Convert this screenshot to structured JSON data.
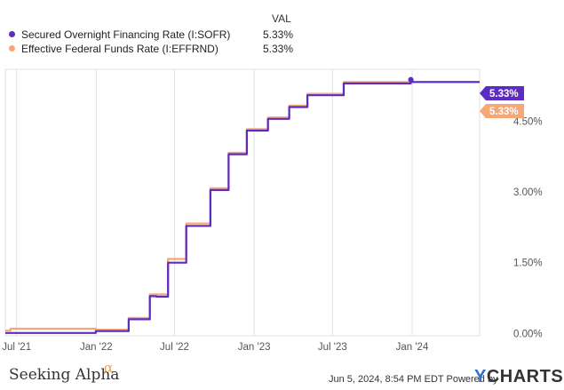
{
  "legend": {
    "header": "VAL",
    "items": [
      {
        "label": "Secured Overnight Financing Rate (I:SOFR)",
        "value": "5.33%",
        "color": "#5b2bc4"
      },
      {
        "label": "Effective Federal Funds Rate (I:EFFRND)",
        "value": "5.33%",
        "color": "#f7a776"
      }
    ]
  },
  "footer": {
    "brand": "Seeking Alpha",
    "brand_mark": "α",
    "date": "Jun 5, 2024, 8:54 PM EDT",
    "powered_by": "Powered by",
    "logo_y": "Y",
    "logo_rest": "CHARTS"
  },
  "chart_data": {
    "type": "line",
    "y_ticks": [
      {
        "v": 0,
        "label": "0.00%"
      },
      {
        "v": 1.5,
        "label": "1.50%"
      },
      {
        "v": 3.0,
        "label": "3.00%"
      },
      {
        "v": 4.5,
        "label": "4.50%"
      }
    ],
    "x_ticks": [
      {
        "date": "2021-07-01",
        "label": "Jul '21"
      },
      {
        "date": "2022-01-01",
        "label": "Jan '22"
      },
      {
        "date": "2022-07-01",
        "label": "Jul '22"
      },
      {
        "date": "2023-01-01",
        "label": "Jan '23"
      },
      {
        "date": "2023-07-01",
        "label": "Jul '23"
      },
      {
        "date": "2024-01-01",
        "label": "Jan '24"
      }
    ],
    "xlim": [
      "2021-06-05",
      "2024-06-05"
    ],
    "ylim": [
      -0.05,
      5.6
    ],
    "grid": {
      "vertical": true,
      "horizontal": false
    },
    "series": [
      {
        "name": "Secured Overnight Financing Rate (I:SOFR)",
        "color": "#5b2bc4",
        "end_label": "5.33%",
        "points": [
          [
            "2021-06-05",
            0.01
          ],
          [
            "2021-12-31",
            0.05
          ],
          [
            "2022-03-17",
            0.3
          ],
          [
            "2022-05-05",
            0.79
          ],
          [
            "2022-05-20",
            0.78
          ],
          [
            "2022-06-16",
            1.5
          ],
          [
            "2022-07-28",
            2.28
          ],
          [
            "2022-09-22",
            3.04
          ],
          [
            "2022-11-03",
            3.8
          ],
          [
            "2022-12-15",
            4.3
          ],
          [
            "2023-02-02",
            4.55
          ],
          [
            "2023-03-23",
            4.8
          ],
          [
            "2023-05-04",
            5.05
          ],
          [
            "2023-07-27",
            5.3
          ],
          [
            "2023-12-29",
            5.38
          ],
          [
            "2024-01-02",
            5.33
          ],
          [
            "2024-06-05",
            5.33
          ]
        ]
      },
      {
        "name": "Effective Federal Funds Rate (I:EFFRND)",
        "color": "#f7a776",
        "end_label": "5.33%",
        "points": [
          [
            "2021-06-05",
            0.06
          ],
          [
            "2021-06-17",
            0.1
          ],
          [
            "2021-12-31",
            0.08
          ],
          [
            "2022-03-17",
            0.33
          ],
          [
            "2022-05-05",
            0.83
          ],
          [
            "2022-06-16",
            1.58
          ],
          [
            "2022-07-28",
            2.33
          ],
          [
            "2022-09-22",
            3.08
          ],
          [
            "2022-11-03",
            3.83
          ],
          [
            "2022-12-15",
            4.33
          ],
          [
            "2023-02-02",
            4.58
          ],
          [
            "2023-03-23",
            4.83
          ],
          [
            "2023-05-04",
            5.08
          ],
          [
            "2023-07-27",
            5.33
          ],
          [
            "2024-06-05",
            5.33
          ]
        ]
      }
    ]
  }
}
